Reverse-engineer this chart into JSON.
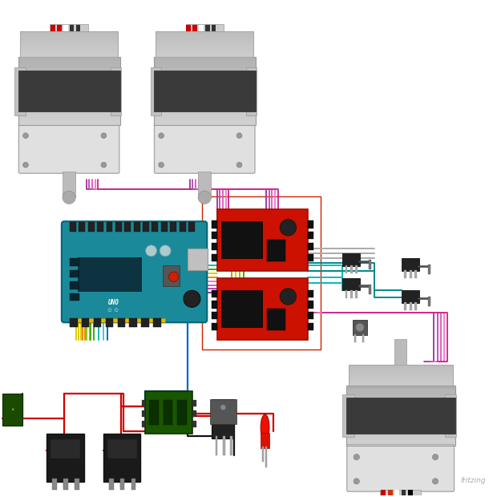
{
  "bg_color": "#ffffff",
  "fritzing_text": "fritzing",
  "fritzing_color": "#aaaaaa",
  "wc": {
    "red": "#cc0000",
    "black": "#111111",
    "blue": "#0066cc",
    "green": "#44aa00",
    "yellow": "#ddcc00",
    "orange": "#ee8800",
    "purple1": "#993399",
    "purple2": "#bb44bb",
    "purple3": "#dd55bb",
    "purple4": "#ee77cc",
    "purple5": "#cc2288",
    "cyan": "#00bbbb",
    "cyan2": "#44cccc",
    "gray": "#aaaaaa",
    "lime": "#88cc00",
    "teal": "#008888"
  },
  "layout": {
    "arduino": [
      0.13,
      0.355,
      0.285,
      0.195
    ],
    "driver1": [
      0.44,
      0.315,
      0.185,
      0.125
    ],
    "driver2": [
      0.44,
      0.455,
      0.185,
      0.125
    ],
    "relay1": [
      0.095,
      0.01,
      0.075,
      0.115
    ],
    "relay2": [
      0.21,
      0.01,
      0.075,
      0.115
    ],
    "green_mod": [
      0.295,
      0.125,
      0.095,
      0.085
    ],
    "transistor": [
      0.43,
      0.08,
      0.045,
      0.115
    ],
    "led": [
      0.525,
      0.095,
      0.025,
      0.07
    ],
    "battery": [
      0.005,
      0.14,
      0.04,
      0.065
    ],
    "motor_bl": [
      0.03,
      0.64,
      0.22,
      0.31
    ],
    "motor_bm": [
      0.305,
      0.64,
      0.22,
      0.31
    ],
    "motor_tr": [
      0.695,
      0.01,
      0.235,
      0.255
    ],
    "button": [
      0.715,
      0.325,
      0.03,
      0.03
    ],
    "sw1": [
      0.695,
      0.415,
      0.065,
      0.025
    ],
    "sw2": [
      0.695,
      0.465,
      0.065,
      0.025
    ],
    "sw3": [
      0.815,
      0.39,
      0.065,
      0.025
    ],
    "sw4": [
      0.815,
      0.455,
      0.065,
      0.025
    ]
  }
}
